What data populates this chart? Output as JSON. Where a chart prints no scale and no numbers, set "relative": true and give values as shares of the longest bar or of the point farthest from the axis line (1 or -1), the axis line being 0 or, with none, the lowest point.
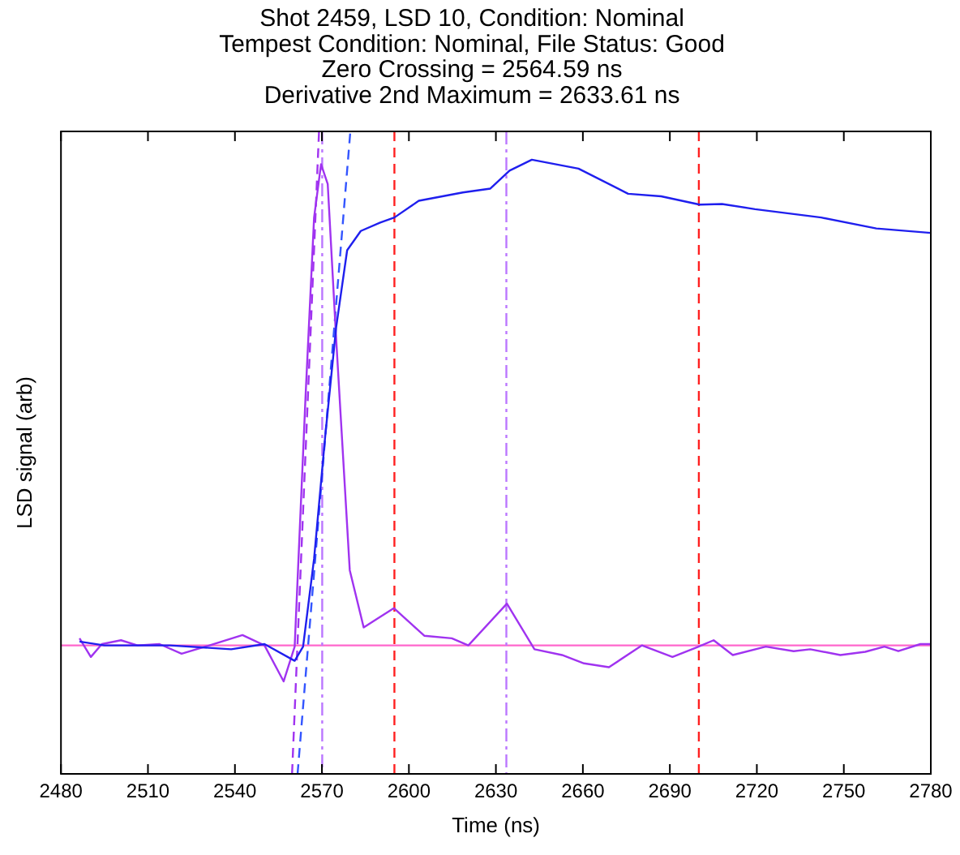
{
  "chart_data": {
    "type": "line",
    "title": "Shot 2459, LSD 10, Condition: Nominal\nTempest Condition: Nominal, File Status: Good\nZero Crossing = 2564.59 ns\nDerivative 2nd Maximum = 2633.61 ns",
    "xlabel": "Time (ns)",
    "ylabel": "LSD signal (arb)",
    "relative": true,
    "xlim": [
      2480,
      2780
    ],
    "xticks": [
      2480,
      2510,
      2540,
      2570,
      2600,
      2630,
      2660,
      2690,
      2720,
      2750,
      2780
    ],
    "grid": false,
    "legend": false,
    "marker": "none",
    "series": [
      {
        "color": "#1f1fee",
        "x": [
          2486.4,
          2495,
          2517.6,
          2538.7,
          2550.2,
          2560.6,
          2563.5,
          2567.3,
          2571.1,
          2574.9,
          2578.7,
          2583.4,
          2590.1,
          2595,
          2603.4,
          2618.6,
          2628.1,
          2634.7,
          2642.4,
          2658.5,
          2675.6,
          2687,
          2700.3,
          2708,
          2719.4,
          2742.2,
          2761.2,
          2780
        ],
        "values": [
          0.206,
          0.2,
          0.2,
          0.194,
          0.202,
          0.176,
          0.198,
          0.335,
          0.524,
          0.695,
          0.815,
          0.845,
          0.858,
          0.866,
          0.892,
          0.905,
          0.911,
          0.939,
          0.956,
          0.942,
          0.903,
          0.899,
          0.886,
          0.887,
          0.879,
          0.866,
          0.849,
          0.842
        ]
      },
      {
        "color": "#a033f0",
        "x": [
          2486.4,
          2490.3,
          2494.1,
          2500.7,
          2506.4,
          2514,
          2521.6,
          2531.2,
          2542.6,
          2550.2,
          2556.8,
          2560.6,
          2564.4,
          2567.3,
          2569.7,
          2572,
          2574.9,
          2579.6,
          2584.4,
          2594.8,
          2605.3,
          2614.8,
          2620.5,
          2633.8,
          2643.3,
          2652.8,
          2660.4,
          2669,
          2680.4,
          2690.9,
          2699.4,
          2705.1,
          2711.7,
          2723.1,
          2732.7,
          2738.4,
          2748.8,
          2757.4,
          2764,
          2768.8,
          2776.4,
          2780
        ],
        "values": [
          0.211,
          0.182,
          0.202,
          0.208,
          0.2,
          0.202,
          0.187,
          0.2,
          0.216,
          0.2,
          0.144,
          0.198,
          0.592,
          0.866,
          0.949,
          0.918,
          0.678,
          0.317,
          0.228,
          0.258,
          0.215,
          0.211,
          0.2,
          0.265,
          0.194,
          0.185,
          0.172,
          0.166,
          0.2,
          0.182,
          0.197,
          0.208,
          0.185,
          0.198,
          0.191,
          0.194,
          0.185,
          0.19,
          0.198,
          0.191,
          0.202,
          0.202
        ]
      },
      {
        "color": "#3355ff",
        "line_style": "dashed",
        "x": [
          2561.6,
          2579.8
        ],
        "values": [
          0,
          1
        ]
      },
      {
        "color": "#a033f0",
        "line_style": "dashed",
        "x": [
          2559.7,
          2569
        ],
        "values": [
          0,
          1
        ]
      }
    ],
    "ref_lines": [
      {
        "axis": "y",
        "value": 0.2,
        "color": "#ff66cc",
        "line_style": "solid"
      },
      {
        "axis": "x",
        "value": 2570.1,
        "color": "#bb77ff",
        "line_style": "dashdot"
      },
      {
        "axis": "x",
        "value": 2633.61,
        "color": "#bb77ff",
        "line_style": "dashdot"
      },
      {
        "axis": "x",
        "value": 2595,
        "color": "#ff2020",
        "line_style": "dashed"
      },
      {
        "axis": "x",
        "value": 2700,
        "color": "#ff2020",
        "line_style": "dashed"
      }
    ]
  }
}
